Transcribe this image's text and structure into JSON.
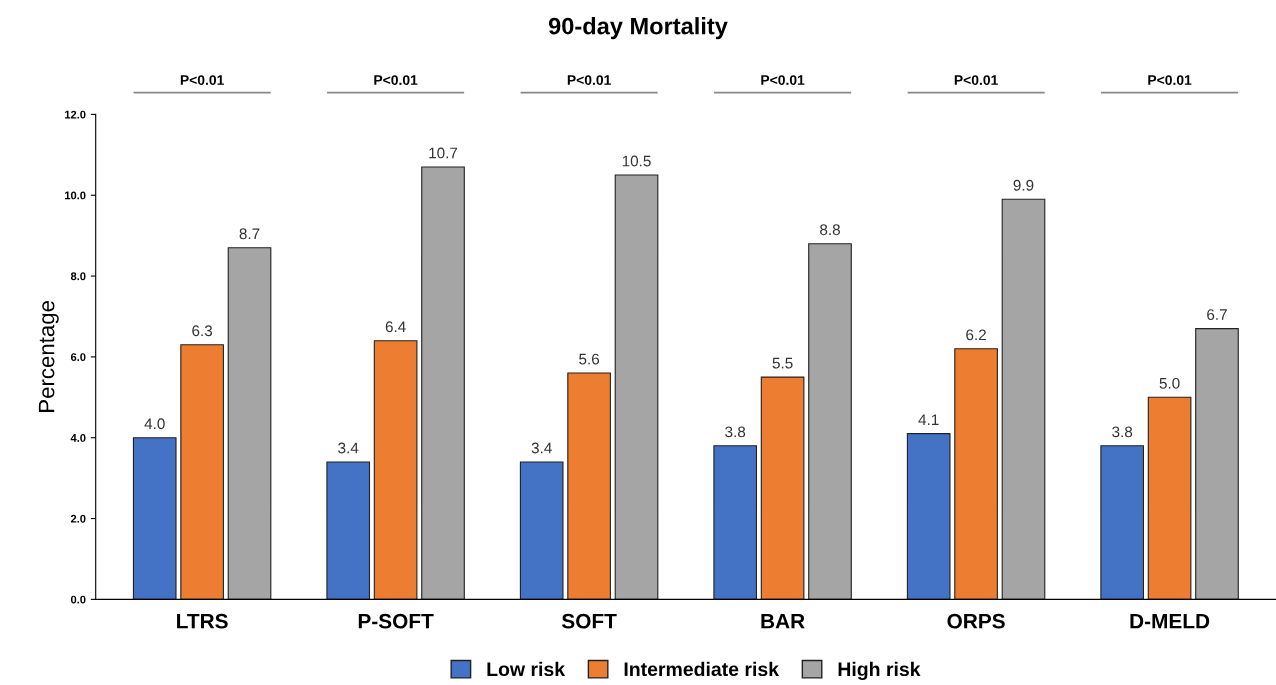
{
  "chart_data": {
    "type": "bar",
    "title": "90-day Mortality",
    "ylabel": "Percentage",
    "categories": [
      "LTRS",
      "P-SOFT",
      "SOFT",
      "BAR",
      "ORPS",
      "D-MELD"
    ],
    "series": [
      {
        "name": "Low risk",
        "color": "#4472c4",
        "values": [
          4,
          3.4,
          3.4,
          3.8,
          4.1,
          3.8
        ],
        "value_labels": [
          "4.0",
          "3.4",
          "3.4",
          "3.8",
          "4.1",
          "3.8"
        ]
      },
      {
        "name": "Intermediate risk",
        "color": "#ed7d31",
        "values": [
          6.3,
          6.4,
          5.6,
          5.5,
          6.2,
          5
        ],
        "value_labels": [
          "6.3",
          "6.4",
          "5.6",
          "5.5",
          "6.2",
          "5.0"
        ]
      },
      {
        "name": "High risk",
        "color": "#a5a5a5",
        "values": [
          8.7,
          10.7,
          10.5,
          8.8,
          9.9,
          6.7
        ],
        "value_labels": [
          "8.7",
          "10.7",
          "10.5",
          "8.8",
          "9.9",
          "6.7"
        ]
      }
    ],
    "ylim": [
      0,
      12
    ],
    "yticks": [
      {
        "value": 0,
        "label": "0.0"
      },
      {
        "value": 2,
        "label": "2.0"
      },
      {
        "value": 4,
        "label": "4.0"
      },
      {
        "value": 6,
        "label": "6.0"
      },
      {
        "value": 8,
        "label": "8.0"
      },
      {
        "value": 10,
        "label": "10.0"
      },
      {
        "value": 12,
        "label": "12.0"
      }
    ],
    "annotations": [
      "P<0.01",
      "P<0.01",
      "P<0.01",
      "P<0.01",
      "P<0.01",
      "P<0.01"
    ],
    "grid": false,
    "legend": "bottom"
  }
}
